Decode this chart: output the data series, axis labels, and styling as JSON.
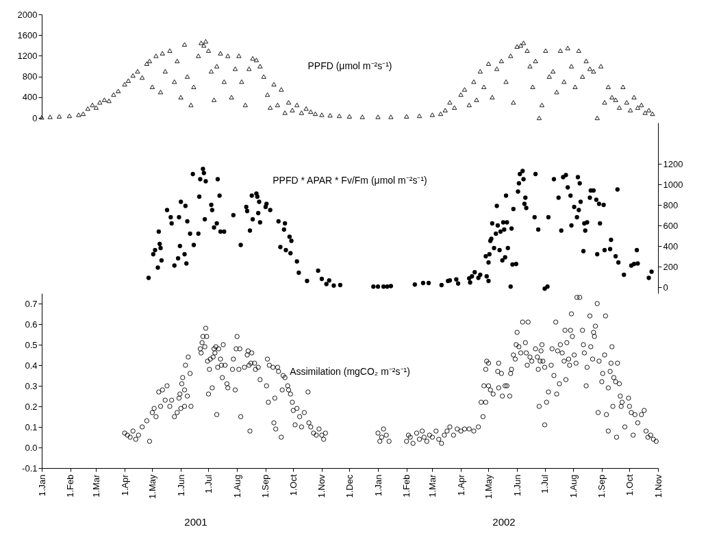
{
  "chart_data": [
    {
      "type": "scatter",
      "marker": "triangle",
      "xlim": [
        "2001-01-01",
        "2002-11-01"
      ],
      "ylim": [
        0,
        2000
      ],
      "yticks": [
        0,
        400,
        800,
        1200,
        1600,
        2000
      ],
      "tick_labels": "y",
      "legend": false,
      "series": [
        {
          "name": "PPFD (μmol m⁻²s⁻¹)",
          "color": "#000000",
          "x": [
            "2001-01-01",
            "2001-01-10",
            "2001-01-20",
            "2001-01-31",
            "2001-02-10",
            "2001-02-15",
            "2001-02-20",
            "2001-02-25",
            "2001-03-01",
            "2001-03-05",
            "2001-03-10",
            "2001-03-15",
            "2001-03-20",
            "2001-03-25",
            "2001-04-01",
            "2001-04-05",
            "2001-04-10",
            "2001-04-15",
            "2001-04-20",
            "2001-04-25",
            "2001-04-28",
            "2001-05-01",
            "2001-05-05",
            "2001-05-10",
            "2001-05-12",
            "2001-05-15",
            "2001-05-20",
            "2001-05-25",
            "2001-05-28",
            "2001-06-01",
            "2001-06-05",
            "2001-06-08",
            "2001-06-12",
            "2001-06-15",
            "2001-06-20",
            "2001-06-23",
            "2001-06-26",
            "2001-06-28",
            "2001-07-01",
            "2001-07-04",
            "2001-07-07",
            "2001-07-10",
            "2001-07-14",
            "2001-07-18",
            "2001-07-22",
            "2001-07-26",
            "2001-07-30",
            "2001-08-03",
            "2001-08-06",
            "2001-08-10",
            "2001-08-14",
            "2001-08-18",
            "2001-08-22",
            "2001-08-26",
            "2001-08-30",
            "2001-09-03",
            "2001-09-06",
            "2001-09-10",
            "2001-09-14",
            "2001-09-18",
            "2001-09-22",
            "2001-09-26",
            "2001-09-30",
            "2001-10-05",
            "2001-10-10",
            "2001-10-15",
            "2001-10-20",
            "2001-10-25",
            "2001-11-01",
            "2001-11-10",
            "2001-11-20",
            "2001-12-01",
            "2001-12-15",
            "2002-01-01",
            "2002-01-15",
            "2002-02-01",
            "2002-02-15",
            "2002-03-01",
            "2002-03-10",
            "2002-03-15",
            "2002-03-20",
            "2002-03-25",
            "2002-04-01",
            "2002-04-05",
            "2002-04-10",
            "2002-04-15",
            "2002-04-18",
            "2002-04-22",
            "2002-04-26",
            "2002-05-01",
            "2002-05-05",
            "2002-05-10",
            "2002-05-15",
            "2002-05-20",
            "2002-05-25",
            "2002-05-28",
            "2002-06-01",
            "2002-06-05",
            "2002-06-08",
            "2002-06-12",
            "2002-06-15",
            "2002-06-18",
            "2002-06-21",
            "2002-06-25",
            "2002-06-28",
            "2002-07-02",
            "2002-07-06",
            "2002-07-10",
            "2002-07-14",
            "2002-07-18",
            "2002-07-22",
            "2002-07-26",
            "2002-07-30",
            "2002-08-03",
            "2002-08-07",
            "2002-08-11",
            "2002-08-15",
            "2002-08-19",
            "2002-08-23",
            "2002-08-27",
            "2002-08-31",
            "2002-09-04",
            "2002-09-08",
            "2002-09-12",
            "2002-09-16",
            "2002-09-20",
            "2002-09-24",
            "2002-09-28",
            "2002-10-02",
            "2002-10-06",
            "2002-10-10",
            "2002-10-14",
            "2002-10-18",
            "2002-10-22",
            "2002-10-26"
          ],
          "values": [
            10,
            20,
            30,
            40,
            60,
            80,
            180,
            250,
            200,
            300,
            350,
            330,
            450,
            520,
            650,
            720,
            820,
            900,
            780,
            1050,
            1100,
            600,
            1200,
            500,
            1250,
            900,
            1300,
            700,
            1100,
            400,
            1420,
            800,
            250,
            600,
            1200,
            1450,
            1400,
            1480,
            1300,
            900,
            350,
            1000,
            1250,
            700,
            1200,
            400,
            950,
            1200,
            700,
            250,
            950,
            1150,
            1120,
            1000,
            800,
            450,
            200,
            650,
            250,
            550,
            100,
            300,
            150,
            250,
            100,
            180,
            120,
            80,
            60,
            50,
            40,
            30,
            20,
            20,
            20,
            30,
            40,
            60,
            80,
            150,
            300,
            200,
            450,
            550,
            250,
            700,
            350,
            900,
            600,
            1050,
            400,
            950,
            1100,
            700,
            1200,
            300,
            1380,
            1400,
            1450,
            1300,
            1000,
            600,
            1100,
            0,
            250,
            1300,
            800,
            900,
            500,
            1300,
            700,
            1350,
            1000,
            600,
            1300,
            800,
            1100,
            950,
            900,
            0,
            1000,
            300,
            600,
            400,
            350,
            200,
            600,
            300,
            150,
            400,
            200,
            250,
            100,
            150,
            80
          ]
        }
      ]
    },
    {
      "type": "scatter",
      "marker": "circle",
      "xlim": [
        "2001-01-01",
        "2002-11-01"
      ],
      "y2lim": [
        -60,
        1600
      ],
      "y2ticks": [
        0,
        200,
        400,
        600,
        800,
        1000,
        1200
      ],
      "tick_labels": "y",
      "legend": false,
      "series": [
        {
          "name": "PPFD * APAR * Fv/Fm (μmol m⁻²s⁻¹)",
          "color": "#000000",
          "axis": "y2",
          "x": [
            "2001-04-27",
            "2001-05-02",
            "2001-05-04",
            "2001-05-07",
            "2001-05-08",
            "2001-05-09",
            "2001-05-10",
            "2001-05-11",
            "2001-05-17",
            "2001-05-21",
            "2001-05-22",
            "2001-05-25",
            "2001-05-29",
            "2001-05-30",
            "2001-05-31",
            "2001-06-01",
            "2001-06-05",
            "2001-06-06",
            "2001-06-07",
            "2001-06-08",
            "2001-06-11",
            "2001-06-14",
            "2001-06-15",
            "2001-06-20",
            "2001-06-21",
            "2001-06-22",
            "2001-06-25",
            "2001-06-26",
            "2001-06-27",
            "2001-06-28",
            "2001-07-04",
            "2001-07-05",
            "2001-07-07",
            "2001-07-10",
            "2001-07-11",
            "2001-07-13",
            "2001-07-14",
            "2001-07-18",
            "2001-07-28",
            "2001-08-05",
            "2001-08-11",
            "2001-08-12",
            "2001-08-15",
            "2001-08-17",
            "2001-08-18",
            "2001-08-22",
            "2001-08-23",
            "2001-08-24",
            "2001-08-25",
            "2001-08-26",
            "2001-09-01",
            "2001-09-02",
            "2001-09-06",
            "2001-09-15",
            "2001-09-17",
            "2001-09-21",
            "2001-09-22",
            "2001-09-23",
            "2001-09-27",
            "2001-09-28",
            "2001-09-29",
            "2001-10-05",
            "2001-10-07",
            "2001-10-16",
            "2001-10-28",
            "2001-11-01",
            "2001-11-06",
            "2001-11-09",
            "2001-11-14",
            "2001-11-21",
            "2001-12-27",
            "2002-01-01",
            "2002-01-07",
            "2002-01-11",
            "2002-01-15",
            "2002-02-10",
            "2002-02-19",
            "2002-02-25",
            "2002-03-11",
            "2002-03-18",
            "2002-03-20",
            "2002-03-27",
            "2002-03-29",
            "2002-04-10",
            "2002-04-11",
            "2002-04-13",
            "2002-04-16",
            "2002-04-20",
            "2002-04-22",
            "2002-04-28",
            "2002-04-29",
            "2002-05-01",
            "2002-05-01",
            "2002-05-02",
            "2002-05-03",
            "2002-05-04",
            "2002-05-05",
            "2002-05-07",
            "2002-05-09",
            "2002-05-10",
            "2002-05-11",
            "2002-05-13",
            "2002-05-14",
            "2002-05-16",
            "2002-05-17",
            "2002-05-18",
            "2002-05-19",
            "2002-05-20",
            "2002-05-21",
            "2002-05-22",
            "2002-05-25",
            "2002-05-26",
            "2002-05-27",
            "2002-05-28",
            "2002-05-31",
            "2002-06-02",
            "2002-06-03",
            "2002-06-04",
            "2002-06-07",
            "2002-06-08",
            "2002-06-09",
            "2002-06-10",
            "2002-06-11",
            "2002-06-20",
            "2002-06-21",
            "2002-06-24",
            "2002-07-01",
            "2002-07-04",
            "2002-07-05",
            "2002-07-11",
            "2002-07-16",
            "2002-07-19",
            "2002-07-21",
            "2002-07-24",
            "2002-07-26",
            "2002-07-29",
            "2002-07-30",
            "2002-08-02",
            "2002-08-05",
            "2002-08-06",
            "2002-08-07",
            "2002-08-08",
            "2002-08-09",
            "2002-08-12",
            "2002-08-13",
            "2002-08-14",
            "2002-08-16",
            "2002-08-19",
            "2002-08-20",
            "2002-08-23",
            "2002-08-26",
            "2002-08-27",
            "2002-08-29",
            "2002-08-30",
            "2002-09-03",
            "2002-09-04",
            "2002-09-10",
            "2002-09-11",
            "2002-09-16",
            "2002-09-18",
            "2002-09-19",
            "2002-09-25",
            "2002-10-03",
            "2002-10-06",
            "2002-10-09",
            "2002-10-10",
            "2002-10-22",
            "2002-10-25"
          ],
          "values": [
            90,
            320,
            360,
            190,
            540,
            420,
            380,
            260,
            750,
            680,
            620,
            210,
            280,
            680,
            400,
            830,
            320,
            790,
            230,
            640,
            520,
            1100,
            410,
            520,
            880,
            1050,
            1150,
            1110,
            660,
            1030,
            800,
            750,
            580,
            620,
            1050,
            890,
            540,
            540,
            700,
            410,
            780,
            740,
            550,
            890,
            660,
            910,
            880,
            720,
            830,
            630,
            780,
            810,
            750,
            640,
            390,
            560,
            620,
            360,
            490,
            330,
            450,
            250,
            140,
            60,
            160,
            80,
            30,
            65,
            15,
            20,
            5,
            5,
            5,
            5,
            10,
            25,
            40,
            40,
            20,
            60,
            65,
            75,
            35,
            85,
            45,
            105,
            145,
            90,
            120,
            300,
            105,
            240,
            60,
            320,
            450,
            470,
            620,
            380,
            520,
            790,
            600,
            360,
            540,
            260,
            630,
            560,
            290,
            890,
            630,
            380,
            5,
            570,
            220,
            760,
            225,
            930,
            1010,
            1100,
            1130,
            1050,
            810,
            870,
            770,
            680,
            1100,
            560,
            -15,
            5,
            680,
            1050,
            870,
            550,
            1070,
            1090,
            970,
            890,
            600,
            780,
            680,
            1070,
            750,
            1010,
            830,
            350,
            620,
            550,
            630,
            870,
            940,
            940,
            850,
            320,
            810,
            620,
            800,
            360,
            370,
            460,
            300,
            950,
            240,
            120,
            210,
            225,
            360,
            230,
            90,
            150
          ]
        }
      ]
    },
    {
      "type": "scatter",
      "marker": "circle",
      "xlim": [
        "2001-01-01",
        "2002-11-01"
      ],
      "ylim": [
        -0.1,
        0.75
      ],
      "yticks": [
        -0.1,
        {
          "value": 0,
          "label": "0.0"
        },
        0.1,
        0.2,
        0.3,
        0.4,
        0.5,
        0.6,
        0.7
      ],
      "legend": false,
      "xticks": [
        {
          "value": "2001-01-01",
          "label": "1.Jan"
        },
        {
          "value": "2001-02-01",
          "label": "1.Feb"
        },
        {
          "value": "2001-03-01",
          "label": "1.Mar"
        },
        {
          "value": "2001-04-01",
          "label": "1.Apr"
        },
        {
          "value": "2001-05-01",
          "label": "1.May"
        },
        {
          "value": "2001-06-01",
          "label": "1.Jun"
        },
        {
          "value": "2001-07-01",
          "label": "1.Jul"
        },
        {
          "value": "2001-08-01",
          "label": "1.Aug"
        },
        {
          "value": "2001-09-01",
          "label": "1.Sep"
        },
        {
          "value": "2001-10-01",
          "label": "1.Oct"
        },
        {
          "value": "2001-11-01",
          "label": "1.Nov"
        },
        {
          "value": "2001-12-01",
          "label": "1.Dec"
        },
        {
          "value": "2002-01-01",
          "label": "1.Jan"
        },
        {
          "value": "2002-02-01",
          "label": "1.Feb"
        },
        {
          "value": "2002-03-01",
          "label": "1.Mar"
        },
        {
          "value": "2002-04-01",
          "label": "1.Apr"
        },
        {
          "value": "2002-05-01",
          "label": "1.May"
        },
        {
          "value": "2002-06-01",
          "label": "1.Jun"
        },
        {
          "value": "2002-07-01",
          "label": "1.Jul"
        },
        {
          "value": "2002-08-01",
          "label": "1.Aug"
        },
        {
          "value": "2002-09-01",
          "label": "1.Sep"
        },
        {
          "value": "2002-10-01",
          "label": "1.Oct"
        },
        {
          "value": "2002-11-01",
          "label": "1.Nov"
        }
      ],
      "annotations": [
        "2001",
        "2002"
      ],
      "series": [
        {
          "name": "Assimilation (mgCO₂ m⁻²s⁻¹)",
          "color": "#000000",
          "x": [
            "2001-04-01",
            "2001-04-04",
            "2001-04-07",
            "2001-04-10",
            "2001-04-13",
            "2001-04-16",
            "2001-04-20",
            "2001-04-25",
            "2001-04-28",
            "2001-05-01",
            "2001-05-03",
            "2001-05-05",
            "2001-05-08",
            "2001-05-10",
            "2001-05-12",
            "2001-05-15",
            "2001-05-17",
            "2001-05-20",
            "2001-05-22",
            "2001-05-25",
            "2001-05-28",
            "2001-05-30",
            "2001-05-31",
            "2001-06-01",
            "2001-06-02",
            "2001-06-03",
            "2001-06-05",
            "2001-06-05",
            "2001-06-06",
            "2001-06-08",
            "2001-06-09",
            "2001-06-11",
            "2001-06-12",
            "2001-06-22",
            "2001-06-23",
            "2001-06-24",
            "2001-06-25",
            "2001-06-27",
            "2001-06-28",
            "2001-06-29",
            "2001-06-30",
            "2001-07-01",
            "2001-07-02",
            "2001-07-03",
            "2001-07-05",
            "2001-07-06",
            "2001-07-07",
            "2001-07-08",
            "2001-07-09",
            "2001-07-10",
            "2001-07-11",
            "2001-07-12",
            "2001-07-14",
            "2001-07-15",
            "2001-07-16",
            "2001-07-17",
            "2001-07-19",
            "2001-07-21",
            "2001-07-22",
            "2001-07-27",
            "2001-07-28",
            "2001-07-30",
            "2001-07-31",
            "2001-08-01",
            "2001-08-03",
            "2001-08-04",
            "2001-08-05",
            "2001-08-09",
            "2001-08-12",
            "2001-08-13",
            "2001-08-14",
            "2001-08-15",
            "2001-08-16",
            "2001-08-17",
            "2001-08-20",
            "2001-08-21",
            "2001-08-24",
            "2001-08-26",
            "2001-09-02",
            "2001-09-03",
            "2001-09-04",
            "2001-09-05",
            "2001-09-09",
            "2001-09-10",
            "2001-09-11",
            "2001-09-12",
            "2001-09-14",
            "2001-09-15",
            "2001-09-18",
            "2001-09-19",
            "2001-09-20",
            "2001-09-22",
            "2001-09-25",
            "2001-09-26",
            "2001-09-28",
            "2001-09-30",
            "2001-10-01",
            "2001-10-03",
            "2001-10-05",
            "2001-10-08",
            "2001-10-10",
            "2001-10-13",
            "2001-10-17",
            "2001-10-18",
            "2001-10-20",
            "2001-10-23",
            "2001-10-26",
            "2001-10-29",
            "2001-11-01",
            "2001-11-03",
            "2001-11-05",
            "2002-01-01",
            "2002-01-03",
            "2002-01-05",
            "2002-01-07",
            "2002-01-10",
            "2002-01-13",
            "2002-02-01",
            "2002-02-03",
            "2002-02-05",
            "2002-02-08",
            "2002-02-12",
            "2002-02-15",
            "2002-02-18",
            "2002-02-20",
            "2002-02-23",
            "2002-02-26",
            "2002-03-01",
            "2002-03-05",
            "2002-03-08",
            "2002-03-11",
            "2002-03-14",
            "2002-03-17",
            "2002-03-20",
            "2002-03-24",
            "2002-03-28",
            "2002-04-01",
            "2002-04-05",
            "2002-04-10",
            "2002-04-15",
            "2002-04-20",
            "2002-04-23",
            "2002-04-25",
            "2002-04-26",
            "2002-04-28",
            "2002-04-28",
            "2002-04-29",
            "2002-05-01",
            "2002-05-01",
            "2002-05-03",
            "2002-05-06",
            "2002-05-11",
            "2002-05-12",
            "2002-05-12",
            "2002-05-15",
            "2002-05-16",
            "2002-05-19",
            "2002-05-21",
            "2002-05-24",
            "2002-05-25",
            "2002-05-26",
            "2002-05-28",
            "2002-05-30",
            "2002-05-31",
            "2002-06-01",
            "2002-06-03",
            "2002-06-05",
            "2002-06-07",
            "2002-06-10",
            "2002-06-11",
            "2002-06-12",
            "2002-06-13",
            "2002-06-15",
            "2002-06-17",
            "2002-06-21",
            "2002-06-23",
            "2002-06-24",
            "2002-06-25",
            "2002-06-26",
            "2002-06-27",
            "2002-06-28",
            "2002-06-29",
            "2002-07-01",
            "2002-07-01",
            "2002-07-03",
            "2002-07-05",
            "2002-07-08",
            "2002-07-09",
            "2002-07-11",
            "2002-07-13",
            "2002-07-14",
            "2002-07-15",
            "2002-07-17",
            "2002-07-18",
            "2002-07-20",
            "2002-07-22",
            "2002-07-23",
            "2002-07-24",
            "2002-07-25",
            "2002-07-27",
            "2002-07-28",
            "2002-07-29",
            "2002-07-30",
            "2002-07-31",
            "2002-08-02",
            "2002-08-04",
            "2002-08-05",
            "2002-08-08",
            "2002-08-11",
            "2002-08-12",
            "2002-08-13",
            "2002-08-15",
            "2002-08-16",
            "2002-08-19",
            "2002-08-20",
            "2002-08-22",
            "2002-08-23",
            "2002-08-24",
            "2002-08-25",
            "2002-08-27",
            "2002-08-28",
            "2002-08-29",
            "2002-09-01",
            "2002-09-02",
            "2002-09-04",
            "2002-09-05",
            "2002-09-06",
            "2002-09-08",
            "2002-09-08",
            "2002-09-10",
            "2002-09-11",
            "2002-09-12",
            "2002-09-13",
            "2002-09-14",
            "2002-09-16",
            "2002-09-17",
            "2002-09-18",
            "2002-09-20",
            "2002-09-21",
            "2002-09-22",
            "2002-09-23",
            "2002-09-26",
            "2002-09-30",
            "2002-10-01",
            "2002-10-03",
            "2002-10-05",
            "2002-10-07",
            "2002-10-10",
            "2002-10-14",
            "2002-10-17",
            "2002-10-19",
            "2002-10-21",
            "2002-10-24",
            "2002-10-27",
            "2002-10-30"
          ],
          "values": [
            0.07,
            0.06,
            0.05,
            0.08,
            0.04,
            0.06,
            0.1,
            0.13,
            0.03,
            0.17,
            0.19,
            0.15,
            0.27,
            0.2,
            0.28,
            0.23,
            0.3,
            0.2,
            0.23,
            0.15,
            0.17,
            0.24,
            0.26,
            0.19,
            0.31,
            0.34,
            0.28,
            0.2,
            0.4,
            0.25,
            0.44,
            0.36,
            0.2,
            0.48,
            0.46,
            0.51,
            0.54,
            0.49,
            0.58,
            0.54,
            0.42,
            0.26,
            0.38,
            0.43,
            0.29,
            0.44,
            0.48,
            0.46,
            0.49,
            0.16,
            0.39,
            0.48,
            0.43,
            0.4,
            0.34,
            0.5,
            0.4,
            0.31,
            0.29,
            0.38,
            0.43,
            0.28,
            0.48,
            0.54,
            0.38,
            0.48,
            0.15,
            0.39,
            0.45,
            0.47,
            0.4,
            0.08,
            0.41,
            0.46,
            0.41,
            0.38,
            0.39,
            0.33,
            0.3,
            0.43,
            0.22,
            0.4,
            0.39,
            0.12,
            0.24,
            0.09,
            0.39,
            0.37,
            0.05,
            0.28,
            0.35,
            0.34,
            0.3,
            0.28,
            0.26,
            0.22,
            0.18,
            0.11,
            0.19,
            0.15,
            0.1,
            0.17,
            0.27,
            0.12,
            0.1,
            0.07,
            0.06,
            0.09,
            0.06,
            0.04,
            0.07,
            0.07,
            0.03,
            0.05,
            0.09,
            0.06,
            0.03,
            0.03,
            0.06,
            0.05,
            0.02,
            0.07,
            0.04,
            0.08,
            0.05,
            0.03,
            0.06,
            0.05,
            0.08,
            0.04,
            0.02,
            0.06,
            0.08,
            0.1,
            0.06,
            0.09,
            0.08,
            0.09,
            0.09,
            0.08,
            0.1,
            0.22,
            0.15,
            0.3,
            0.38,
            0.22,
            0.42,
            0.41,
            0.3,
            0.28,
            0.26,
            0.37,
            0.41,
            0.29,
            0.36,
            0.25,
            0.3,
            0.3,
            0.25,
            0.36,
            0.38,
            0.45,
            0.43,
            0.5,
            0.56,
            0.49,
            0.46,
            0.61,
            0.51,
            0.46,
            0.4,
            0.61,
            0.44,
            0.42,
            0.48,
            0.44,
            0.38,
            0.2,
            0.42,
            0.47,
            0.5,
            0.42,
            0.39,
            0.11,
            0.22,
            0.27,
            0.4,
            0.48,
            0.35,
            0.61,
            0.26,
            0.47,
            0.31,
            0.5,
            0.46,
            0.42,
            0.57,
            0.33,
            0.51,
            0.43,
            0.4,
            0.57,
            0.65,
            0.54,
            0.45,
            0.41,
            0.73,
            0.73,
            0.57,
            0.5,
            0.46,
            0.3,
            0.39,
            0.64,
            0.49,
            0.43,
            0.56,
            0.54,
            0.59,
            0.7,
            0.17,
            0.42,
            0.32,
            0.36,
            0.45,
            0.64,
            0.16,
            0.29,
            0.08,
            0.37,
            0.41,
            0.49,
            0.2,
            0.34,
            0.32,
            0.05,
            0.41,
            0.31,
            0.25,
            0.2,
            0.22,
            0.1,
            0.24,
            0.2,
            0.17,
            0.06,
            0.16,
            0.12,
            0.16,
            0.18,
            0.08,
            0.05,
            0.06,
            0.04,
            0.03
          ]
        }
      ]
    }
  ]
}
